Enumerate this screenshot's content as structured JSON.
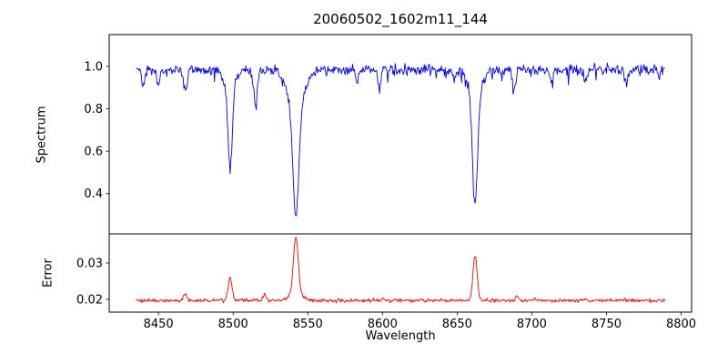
{
  "chart_data": {
    "type": "line",
    "title": "20060502_1602m11_144",
    "xlabel": "Wavelength",
    "legend": "none",
    "grid": false,
    "xlim": [
      8417,
      8807
    ],
    "data_x_range": [
      8435,
      8789
    ],
    "sample_step": 0.5,
    "x_ticks": [
      8450,
      8500,
      8550,
      8600,
      8650,
      8700,
      8750,
      8800
    ],
    "x_tick_labels": [
      "8450",
      "8500",
      "8550",
      "8600",
      "8650",
      "8700",
      "8750",
      "8800"
    ],
    "rng_seed": 20060502,
    "frame_color": "#000000",
    "panels": [
      {
        "ylabel": "Spectrum",
        "color": "#0000ff",
        "ylim": [
          0.21,
          1.15
        ],
        "yticks": [
          0.4,
          0.6,
          0.8,
          1.0
        ],
        "ytick_labels": [
          "0.4",
          "0.6",
          "0.8",
          "1.0"
        ],
        "baseline": 0.985,
        "noise_std": 0.012,
        "dip_prob": 0.1,
        "dip_max": 0.05,
        "features": [
          {
            "c": 8433,
            "a": -0.07,
            "w": 1.0
          },
          {
            "c": 8440,
            "a": -0.09,
            "w": 1.0
          },
          {
            "c": 8450,
            "a": -0.06,
            "w": 0.9
          },
          {
            "c": 8468,
            "a": -0.1,
            "w": 1.1
          },
          {
            "c": 8498,
            "a": -0.4,
            "w": 1.4
          },
          {
            "c": 8498,
            "a": -0.07,
            "w": 4.0
          },
          {
            "c": 8515,
            "a": -0.15,
            "w": 1.2
          },
          {
            "c": 8542,
            "a": -0.5,
            "w": 1.9
          },
          {
            "c": 8542,
            "a": -0.19,
            "w": 5.5
          },
          {
            "c": 8583,
            "a": -0.06,
            "w": 1.0
          },
          {
            "c": 8598,
            "a": -0.07,
            "w": 1.0
          },
          {
            "c": 8648,
            "a": -0.05,
            "w": 0.9
          },
          {
            "c": 8662,
            "a": -0.52,
            "w": 1.7
          },
          {
            "c": 8662,
            "a": -0.11,
            "w": 4.5
          },
          {
            "c": 8688,
            "a": -0.09,
            "w": 1.1
          },
          {
            "c": 8713,
            "a": -0.06,
            "w": 1.0
          },
          {
            "c": 8736,
            "a": -0.06,
            "w": 1.0
          },
          {
            "c": 8763,
            "a": -0.07,
            "w": 1.0
          }
        ]
      },
      {
        "ylabel": "Error",
        "color": "#ff0000",
        "ylim": [
          0.0165,
          0.038
        ],
        "yticks": [
          0.02,
          0.03
        ],
        "ytick_labels": [
          "0.02",
          "0.03"
        ],
        "baseline": 0.0197,
        "noise_std": 0.00025,
        "dip_prob": 0,
        "dip_max": 0,
        "features": [
          {
            "c": 8430,
            "a": 0.003,
            "w": 1.2
          },
          {
            "c": 8468,
            "a": 0.0018,
            "w": 1.0
          },
          {
            "c": 8498,
            "a": 0.0062,
            "w": 1.3
          },
          {
            "c": 8521,
            "a": 0.0015,
            "w": 1.0
          },
          {
            "c": 8542,
            "a": 0.0155,
            "w": 1.6
          },
          {
            "c": 8542,
            "a": 0.002,
            "w": 4.0
          },
          {
            "c": 8662,
            "a": 0.0125,
            "w": 1.4
          },
          {
            "c": 8690,
            "a": 0.0012,
            "w": 1.0
          }
        ]
      }
    ]
  }
}
